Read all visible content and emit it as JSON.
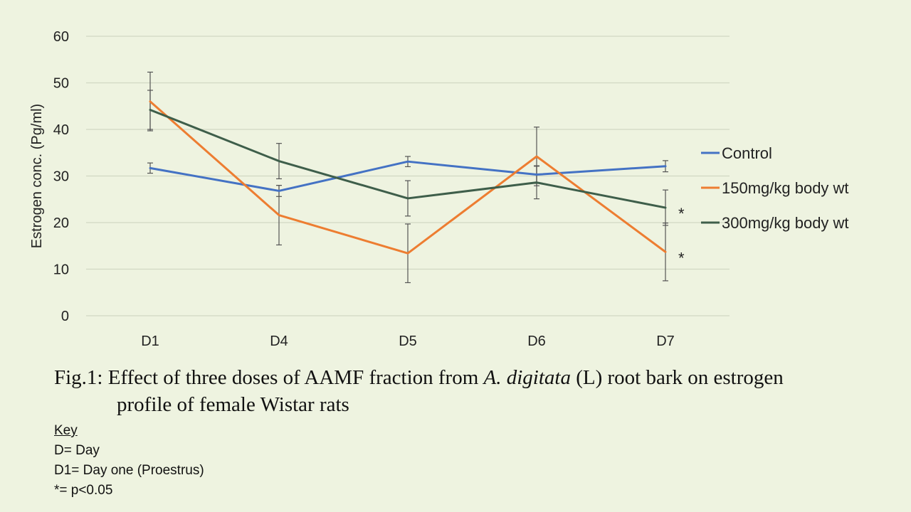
{
  "chart_data": {
    "type": "line",
    "title": "",
    "xlabel": "",
    "ylabel": "Estrogen conc. (Pg/ml)",
    "categories": [
      "D1",
      "D4",
      "D5",
      "D6",
      "D7"
    ],
    "ylim": [
      0,
      60
    ],
    "yticks": [
      0,
      10,
      20,
      30,
      40,
      50,
      60
    ],
    "grid": true,
    "legend_position": "right",
    "series": [
      {
        "name": "Control",
        "color": "#4472c4",
        "values": [
          31.7,
          26.8,
          33.1,
          30.3,
          32.1
        ],
        "err": [
          1.1,
          1.2,
          1.1,
          1.9,
          1.2
        ]
      },
      {
        "name": "150mg/kg body wt",
        "color": "#ed7d31",
        "values": [
          46.0,
          21.6,
          13.4,
          34.2,
          13.7
        ],
        "err": [
          6.3,
          6.4,
          6.3,
          6.3,
          6.2
        ]
      },
      {
        "name": "300mg/kg body wt",
        "color": "#3e5e4a",
        "values": [
          44.2,
          33.2,
          25.2,
          28.6,
          23.2
        ],
        "err": [
          4.2,
          3.8,
          3.8,
          3.5,
          3.8
        ]
      }
    ],
    "annotations": [
      {
        "text": "*",
        "series": "300mg/kg body wt",
        "category": "D7"
      },
      {
        "text": "*",
        "series": "150mg/kg body wt",
        "category": "D7"
      }
    ]
  },
  "caption": {
    "prefix": "Fig.1: Effect of three doses of  AAMF fraction from ",
    "italic": "A. digitata",
    "suffix": " (L) root bark on estrogen",
    "line2": "profile of female Wistar rats"
  },
  "key": {
    "title": "Key",
    "lines": [
      "D= Day",
      "D1= Day one (Proestrus)",
      "*= p<0.05"
    ]
  }
}
